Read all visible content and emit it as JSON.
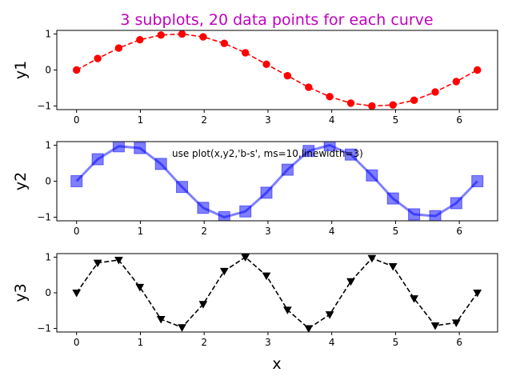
{
  "figure": {
    "title": "3 subplots, 20 data points for each curve",
    "title_color": "#bf00bf",
    "xlabel": "x"
  },
  "chart_data": [
    {
      "type": "line",
      "ylabel": "y1",
      "xlim": [
        -0.31,
        6.6
      ],
      "ylim": [
        -1.1,
        1.1
      ],
      "xticks": [
        0,
        1,
        2,
        3,
        4,
        5,
        6
      ],
      "yticks": [
        -1,
        0,
        1
      ],
      "grid": false,
      "annotation": "",
      "series": [
        {
          "color": "#ff0000",
          "linestyle": "dashed",
          "marker": "circle",
          "x": [
            0,
            0.331,
            0.661,
            0.992,
            1.323,
            1.653,
            1.984,
            2.315,
            2.646,
            2.976,
            3.307,
            3.638,
            3.968,
            4.299,
            4.63,
            4.96,
            5.291,
            5.622,
            5.952,
            6.283
          ],
          "y": [
            0,
            0.32,
            0.61,
            0.84,
            0.97,
            1.0,
            0.92,
            0.74,
            0.48,
            0.16,
            -0.16,
            -0.48,
            -0.74,
            -0.92,
            -1.0,
            -0.97,
            -0.84,
            -0.61,
            -0.32,
            0
          ]
        }
      ]
    },
    {
      "type": "line",
      "ylabel": "y2",
      "xlim": [
        -0.31,
        6.6
      ],
      "ylim": [
        -1.1,
        1.1
      ],
      "xticks": [
        0,
        1,
        2,
        3,
        4,
        5,
        6
      ],
      "yticks": [
        -1,
        0,
        1
      ],
      "grid": false,
      "annotation": "use plot(x,y2,'b-s', ms=10,linewidth=3)",
      "series": [
        {
          "color": "#0000ff",
          "linestyle": "solid",
          "marker": "square",
          "x": [
            0,
            0.331,
            0.661,
            0.992,
            1.323,
            1.653,
            1.984,
            2.315,
            2.646,
            2.976,
            3.307,
            3.638,
            3.968,
            4.299,
            4.63,
            4.96,
            5.291,
            5.622,
            5.952,
            6.283
          ],
          "y": [
            0,
            0.61,
            0.97,
            0.92,
            0.48,
            -0.16,
            -0.74,
            -1.0,
            -0.84,
            -0.32,
            0.32,
            0.84,
            1.0,
            0.74,
            0.16,
            -0.48,
            -0.92,
            -0.97,
            -0.61,
            0
          ]
        }
      ]
    },
    {
      "type": "line",
      "ylabel": "y3",
      "xlim": [
        -0.31,
        6.6
      ],
      "ylim": [
        -1.1,
        1.1
      ],
      "xticks": [
        0,
        1,
        2,
        3,
        4,
        5,
        6
      ],
      "yticks": [
        -1,
        0,
        1
      ],
      "grid": false,
      "annotation": "",
      "series": [
        {
          "color": "#000000",
          "linestyle": "dashed",
          "marker": "triangle-down",
          "x": [
            0,
            0.331,
            0.661,
            0.992,
            1.323,
            1.653,
            1.984,
            2.315,
            2.646,
            2.976,
            3.307,
            3.638,
            3.968,
            4.299,
            4.63,
            4.96,
            5.291,
            5.622,
            5.952,
            6.283
          ],
          "y": [
            0,
            0.84,
            0.92,
            0.16,
            -0.74,
            -0.97,
            -0.32,
            0.61,
            1.0,
            0.48,
            -0.48,
            -1.0,
            -0.61,
            0.32,
            0.97,
            0.74,
            -0.16,
            -0.92,
            -0.84,
            0
          ]
        }
      ]
    }
  ]
}
